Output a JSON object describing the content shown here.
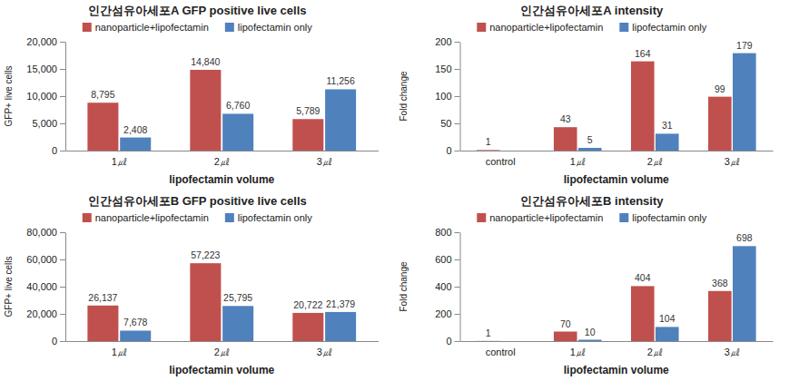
{
  "chart_data": [
    {
      "type": "bar",
      "title": "인간섬유아세포A GFP positive live cells",
      "x_label": "lipofectamin volume",
      "y_label": "GFP+ live cells",
      "categories": [
        "1㎕",
        "2㎕",
        "3㎕"
      ],
      "series": [
        {
          "name": "nanoparticle+lipofectamin",
          "color": "#c0504d",
          "values": [
            8795,
            14840,
            5789
          ],
          "value_labels": [
            "8,795",
            "14,840",
            "5,789"
          ]
        },
        {
          "name": "lipofectamin only",
          "color": "#4f81bd",
          "values": [
            2408,
            6760,
            11256
          ],
          "value_labels": [
            "2,408",
            "6,760",
            "11,256"
          ]
        }
      ],
      "ylim": [
        0,
        20000
      ],
      "yticks": [
        0,
        {
          "value": 5000,
          "label": "5,000"
        },
        {
          "value": 10000,
          "label": "10,000"
        },
        {
          "value": 15000,
          "label": "15,000"
        },
        {
          "value": 20000,
          "label": "20,000"
        }
      ],
      "grid": false,
      "legend": "top",
      "data_labels": true
    },
    {
      "type": "bar",
      "title": "인간섬유아세포A intensity",
      "x_label": "lipofectamin volume",
      "y_label": "Fold change",
      "categories": [
        "control",
        "1㎕",
        "2㎕",
        "3㎕"
      ],
      "series": [
        {
          "name": "nanoparticle+lipofectamin",
          "color": "#c0504d",
          "values": [
            1,
            43,
            164,
            99
          ]
        },
        {
          "name": "lipofectamin only",
          "color": "#4f81bd",
          "values": [
            null,
            5,
            31,
            179
          ]
        }
      ],
      "ylim": [
        0,
        200
      ],
      "yticks": [
        0,
        50,
        100,
        150,
        200
      ],
      "grid": false,
      "legend": "top",
      "data_labels": true
    },
    {
      "type": "bar",
      "title": "인간섬유아세포B GFP positive live cells",
      "x_label": "lipofectamin volume",
      "y_label": "GFP+ live cells",
      "categories": [
        "1㎕",
        "2㎕",
        "3㎕"
      ],
      "series": [
        {
          "name": "nanoparticle+lipofectamin",
          "color": "#c0504d",
          "values": [
            26137,
            57223,
            20722
          ],
          "value_labels": [
            "26,137",
            "57,223",
            "20,722"
          ]
        },
        {
          "name": "lipofectamin only",
          "color": "#4f81bd",
          "values": [
            7678,
            25795,
            21379
          ],
          "value_labels": [
            "7,678",
            "25,795",
            "21,379"
          ]
        }
      ],
      "ylim": [
        0,
        80000
      ],
      "yticks": [
        0,
        {
          "value": 20000,
          "label": "20,000"
        },
        {
          "value": 40000,
          "label": "40,000"
        },
        {
          "value": 60000,
          "label": "60,000"
        },
        {
          "value": 80000,
          "label": "80,000"
        }
      ],
      "grid": false,
      "legend": "top",
      "data_labels": true
    },
    {
      "type": "bar",
      "title": "인간섬유아세포B intensity",
      "x_label": "lipofectamin volume",
      "y_label": "Fold change",
      "categories": [
        "control",
        "1㎕",
        "2㎕",
        "3㎕"
      ],
      "series": [
        {
          "name": "nanoparticle+lipofectamin",
          "color": "#c0504d",
          "values": [
            1,
            70,
            404,
            368
          ]
        },
        {
          "name": "lipofectamin only",
          "color": "#4f81bd",
          "values": [
            null,
            10,
            104,
            698
          ]
        }
      ],
      "ylim": [
        0,
        800
      ],
      "yticks": [
        0,
        200,
        400,
        600,
        800
      ],
      "grid": false,
      "legend": "top",
      "data_labels": true
    }
  ]
}
